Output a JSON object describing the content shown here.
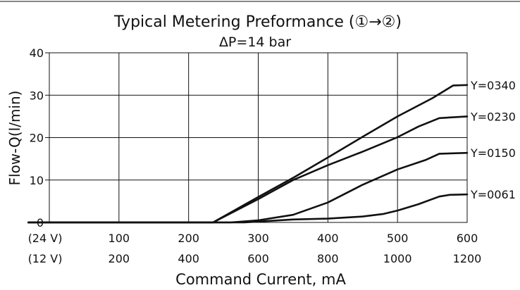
{
  "chart_data": {
    "type": "line",
    "title": "Typical Metering Preformance (①→②)",
    "subtitle": "ΔP=14 bar",
    "xlabel": "Command Current, mA",
    "ylabel": "Flow-Q(l/min)",
    "x_axes": [
      {
        "name": "(24 V)",
        "ticks": [
          "100",
          "200",
          "300",
          "400",
          "500",
          "600"
        ]
      },
      {
        "name": "(12 V)",
        "ticks": [
          "200",
          "400",
          "600",
          "800",
          "1000",
          "1200"
        ]
      }
    ],
    "xlim": [
      0,
      600
    ],
    "ylim": [
      0,
      40
    ],
    "yticks": [
      "0",
      "10",
      "20",
      "30",
      "40"
    ],
    "grid": true,
    "series": [
      {
        "name": "Y=0340",
        "x": [
          -30,
          235,
          300,
          350,
          400,
          450,
          500,
          550,
          580,
          600
        ],
        "y": [
          0,
          0,
          6,
          10.5,
          15.3,
          20.2,
          25,
          29.3,
          32.3,
          32.4
        ]
      },
      {
        "name": "Y=0230",
        "x": [
          -30,
          235,
          300,
          350,
          400,
          450,
          500,
          530,
          560,
          600
        ],
        "y": [
          0,
          0,
          5.5,
          10,
          13.5,
          16.7,
          20.1,
          22.6,
          24.6,
          25
        ]
      },
      {
        "name": "Y=0150",
        "x": [
          -30,
          260,
          300,
          350,
          400,
          450,
          500,
          540,
          560,
          600
        ],
        "y": [
          0,
          0,
          0.5,
          1.8,
          4.7,
          8.9,
          12.5,
          14.7,
          16.2,
          16.4
        ]
      },
      {
        "name": "Y=0061",
        "x": [
          -30,
          280,
          350,
          400,
          450,
          480,
          500,
          530,
          560,
          575,
          600
        ],
        "y": [
          0,
          0,
          0.7,
          0.9,
          1.4,
          2,
          2.8,
          4.3,
          6.1,
          6.5,
          6.6
        ]
      }
    ]
  },
  "colors": {
    "line": "#111111",
    "grid": "#111111",
    "background": "#ffffff"
  }
}
